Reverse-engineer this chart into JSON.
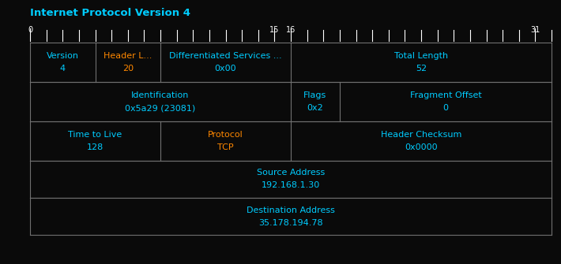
{
  "title": "Internet Protocol Version 4",
  "bg_color": "#0a0a0a",
  "border_color": "#707070",
  "title_color": "#00ccff",
  "ruler_color": "#ffffff",
  "text_color_cyan": "#00ccff",
  "text_color_orange": "#ff8800",
  "fig_width": 7.1,
  "fig_height": 3.35,
  "dpi": 100,
  "rows": [
    {
      "cells": [
        {
          "label": "Version",
          "value": "4",
          "start": 0,
          "end": 4,
          "lc": "#00ccff",
          "vc": "#00ccff"
        },
        {
          "label": "Header L...",
          "value": "20",
          "start": 4,
          "end": 8,
          "lc": "#ff8800",
          "vc": "#ff8800"
        },
        {
          "label": "Differentiated Services ...",
          "value": "0x00",
          "start": 8,
          "end": 16,
          "lc": "#00ccff",
          "vc": "#00ccff"
        },
        {
          "label": "Total Length",
          "value": "52",
          "start": 16,
          "end": 32,
          "lc": "#00ccff",
          "vc": "#00ccff"
        }
      ]
    },
    {
      "cells": [
        {
          "label": "Identification",
          "value": "0x5a29 (23081)",
          "start": 0,
          "end": 16,
          "lc": "#00ccff",
          "vc": "#00ccff"
        },
        {
          "label": "Flags",
          "value": "0x2",
          "start": 16,
          "end": 19,
          "lc": "#00ccff",
          "vc": "#00ccff"
        },
        {
          "label": "Fragment Offset",
          "value": "0",
          "start": 19,
          "end": 32,
          "lc": "#00ccff",
          "vc": "#00ccff"
        }
      ]
    },
    {
      "cells": [
        {
          "label": "Time to Live",
          "value": "128",
          "start": 0,
          "end": 8,
          "lc": "#00ccff",
          "vc": "#00ccff"
        },
        {
          "label": "Protocol",
          "value": "TCP",
          "start": 8,
          "end": 16,
          "lc": "#ff8800",
          "vc": "#ff8800"
        },
        {
          "label": "Header Checksum",
          "value": "0x0000",
          "start": 16,
          "end": 32,
          "lc": "#00ccff",
          "vc": "#00ccff"
        }
      ]
    },
    {
      "cells": [
        {
          "label": "Source Address",
          "value": "192.168.1.30",
          "start": 0,
          "end": 32,
          "lc": "#00ccff",
          "vc": "#00ccff"
        }
      ]
    },
    {
      "cells": [
        {
          "label": "Destination Address",
          "value": "35.178.194.78",
          "start": 0,
          "end": 32,
          "lc": "#00ccff",
          "vc": "#00ccff"
        }
      ]
    }
  ]
}
